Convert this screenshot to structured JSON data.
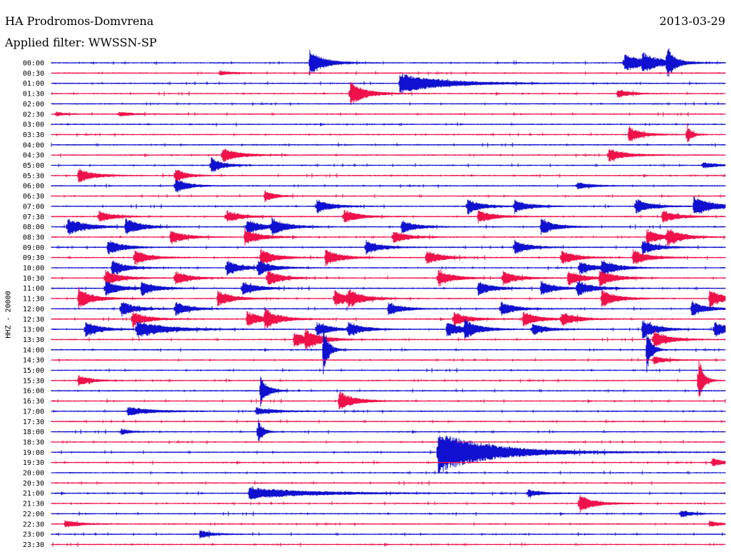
{
  "header": {
    "station": "HA Prodromos-Domvrena",
    "date": "2013-03-29",
    "filter": "Applied filter: WWSSN-SP"
  },
  "channel_label": "HHZ - 20000",
  "colors": {
    "even_rows": "#1010d0",
    "odd_rows": "#f0104a",
    "text": "#000000",
    "background": "#ffffff"
  },
  "chart_data": {
    "type": "line",
    "title": "HA Prodromos-Domvrena",
    "subtitle": "Applied filter: WWSSN-SP",
    "ylabel": "HHZ - 20000",
    "xlabel": "",
    "grid": false,
    "row_labels": [
      "00:00",
      "00:30",
      "01:00",
      "01:30",
      "02:00",
      "02:30",
      "03:00",
      "03:30",
      "04:00",
      "04:30",
      "05:00",
      "05:30",
      "06:00",
      "06:30",
      "07:00",
      "07:30",
      "08:00",
      "08:30",
      "09:00",
      "09:30",
      "10:00",
      "10:30",
      "11:00",
      "11:30",
      "12:00",
      "12:30",
      "13:00",
      "13:30",
      "14:00",
      "14:30",
      "15:00",
      "15:30",
      "16:00",
      "16:30",
      "17:00",
      "17:30",
      "18:00",
      "18:30",
      "19:00",
      "19:30",
      "20:00",
      "20:30",
      "21:00",
      "21:30",
      "22:00",
      "22:30",
      "23:00",
      "23:30"
    ],
    "x_range_minutes": [
      0,
      30
    ],
    "events": [
      {
        "row": 0,
        "t": 11.5,
        "amp": 18,
        "dur": 0.6
      },
      {
        "row": 0,
        "t": 25.5,
        "amp": 12,
        "dur": 1.0
      },
      {
        "row": 0,
        "t": 26.3,
        "amp": 10,
        "dur": 0.6
      },
      {
        "row": 0,
        "t": 27.4,
        "amp": 22,
        "dur": 0.3
      },
      {
        "row": 1,
        "t": 7.5,
        "amp": 3,
        "dur": 0.5
      },
      {
        "row": 2,
        "t": 15.5,
        "amp": 14,
        "dur": 1.8
      },
      {
        "row": 3,
        "t": 13.3,
        "amp": 18,
        "dur": 0.6
      },
      {
        "row": 3,
        "t": 25.2,
        "amp": 6,
        "dur": 0.5
      },
      {
        "row": 5,
        "t": 0.2,
        "amp": 3,
        "dur": 0.4
      },
      {
        "row": 5,
        "t": 3.0,
        "amp": 3,
        "dur": 0.6
      },
      {
        "row": 7,
        "t": 25.7,
        "amp": 12,
        "dur": 0.5
      },
      {
        "row": 7,
        "t": 28.3,
        "amp": 14,
        "dur": 0.2
      },
      {
        "row": 9,
        "t": 7.6,
        "amp": 10,
        "dur": 0.7
      },
      {
        "row": 9,
        "t": 24.8,
        "amp": 9,
        "dur": 0.7
      },
      {
        "row": 10,
        "t": 7.1,
        "amp": 11,
        "dur": 0.5
      },
      {
        "row": 10,
        "t": 29.0,
        "amp": 4,
        "dur": 0.6
      },
      {
        "row": 11,
        "t": 1.2,
        "amp": 10,
        "dur": 0.6
      },
      {
        "row": 11,
        "t": 5.5,
        "amp": 12,
        "dur": 0.4
      },
      {
        "row": 12,
        "t": 5.5,
        "amp": 11,
        "dur": 0.5
      },
      {
        "row": 12,
        "t": 23.4,
        "amp": 5,
        "dur": 0.6
      },
      {
        "row": 13,
        "t": 9.5,
        "amp": 8,
        "dur": 0.4
      },
      {
        "row": 14,
        "t": 11.8,
        "amp": 10,
        "dur": 0.6
      },
      {
        "row": 14,
        "t": 18.5,
        "amp": 10,
        "dur": 0.6
      },
      {
        "row": 14,
        "t": 20.6,
        "amp": 9,
        "dur": 0.6
      },
      {
        "row": 14,
        "t": 26.0,
        "amp": 11,
        "dur": 0.6
      },
      {
        "row": 14,
        "t": 28.6,
        "amp": 14,
        "dur": 0.8
      },
      {
        "row": 15,
        "t": 2.1,
        "amp": 8,
        "dur": 0.6
      },
      {
        "row": 15,
        "t": 7.8,
        "amp": 8,
        "dur": 0.6
      },
      {
        "row": 15,
        "t": 13.0,
        "amp": 10,
        "dur": 0.6
      },
      {
        "row": 15,
        "t": 19.0,
        "amp": 9,
        "dur": 0.6
      },
      {
        "row": 15,
        "t": 27.2,
        "amp": 9,
        "dur": 0.6
      },
      {
        "row": 16,
        "t": 0.7,
        "amp": 12,
        "dur": 0.8
      },
      {
        "row": 16,
        "t": 3.3,
        "amp": 12,
        "dur": 0.6
      },
      {
        "row": 16,
        "t": 8.7,
        "amp": 11,
        "dur": 0.6
      },
      {
        "row": 16,
        "t": 9.8,
        "amp": 12,
        "dur": 0.6
      },
      {
        "row": 16,
        "t": 15.6,
        "amp": 9,
        "dur": 0.6
      },
      {
        "row": 16,
        "t": 21.8,
        "amp": 11,
        "dur": 0.6
      },
      {
        "row": 17,
        "t": 5.3,
        "amp": 10,
        "dur": 0.6
      },
      {
        "row": 17,
        "t": 8.6,
        "amp": 12,
        "dur": 0.6
      },
      {
        "row": 17,
        "t": 15.2,
        "amp": 9,
        "dur": 0.6
      },
      {
        "row": 17,
        "t": 26.5,
        "amp": 10,
        "dur": 0.6
      },
      {
        "row": 17,
        "t": 27.4,
        "amp": 12,
        "dur": 0.6
      },
      {
        "row": 18,
        "t": 2.5,
        "amp": 11,
        "dur": 0.6
      },
      {
        "row": 18,
        "t": 14.0,
        "amp": 10,
        "dur": 0.6
      },
      {
        "row": 18,
        "t": 20.6,
        "amp": 10,
        "dur": 0.6
      },
      {
        "row": 18,
        "t": 26.3,
        "amp": 10,
        "dur": 0.6
      },
      {
        "row": 19,
        "t": 3.7,
        "amp": 10,
        "dur": 0.6
      },
      {
        "row": 19,
        "t": 9.3,
        "amp": 12,
        "dur": 0.6
      },
      {
        "row": 19,
        "t": 12.2,
        "amp": 12,
        "dur": 0.6
      },
      {
        "row": 19,
        "t": 16.7,
        "amp": 10,
        "dur": 0.6
      },
      {
        "row": 19,
        "t": 22.7,
        "amp": 10,
        "dur": 0.6
      },
      {
        "row": 19,
        "t": 25.9,
        "amp": 11,
        "dur": 0.6
      },
      {
        "row": 20,
        "t": 2.7,
        "amp": 10,
        "dur": 0.6
      },
      {
        "row": 20,
        "t": 7.8,
        "amp": 11,
        "dur": 0.6
      },
      {
        "row": 20,
        "t": 9.2,
        "amp": 10,
        "dur": 0.6
      },
      {
        "row": 20,
        "t": 23.5,
        "amp": 9,
        "dur": 0.6
      },
      {
        "row": 20,
        "t": 24.5,
        "amp": 11,
        "dur": 0.6
      },
      {
        "row": 21,
        "t": 2.4,
        "amp": 11,
        "dur": 0.6
      },
      {
        "row": 21,
        "t": 5.5,
        "amp": 10,
        "dur": 0.6
      },
      {
        "row": 21,
        "t": 9.6,
        "amp": 11,
        "dur": 0.6
      },
      {
        "row": 21,
        "t": 17.2,
        "amp": 12,
        "dur": 0.6
      },
      {
        "row": 21,
        "t": 20.1,
        "amp": 10,
        "dur": 0.6
      },
      {
        "row": 21,
        "t": 23.0,
        "amp": 11,
        "dur": 0.6
      },
      {
        "row": 21,
        "t": 24.4,
        "amp": 12,
        "dur": 0.6
      },
      {
        "row": 22,
        "t": 2.4,
        "amp": 11,
        "dur": 0.6
      },
      {
        "row": 22,
        "t": 4.0,
        "amp": 10,
        "dur": 0.6
      },
      {
        "row": 22,
        "t": 8.5,
        "amp": 10,
        "dur": 0.6
      },
      {
        "row": 22,
        "t": 19.0,
        "amp": 10,
        "dur": 0.6
      },
      {
        "row": 22,
        "t": 21.8,
        "amp": 10,
        "dur": 0.6
      },
      {
        "row": 22,
        "t": 23.4,
        "amp": 11,
        "dur": 0.6
      },
      {
        "row": 23,
        "t": 1.2,
        "amp": 14,
        "dur": 0.6
      },
      {
        "row": 23,
        "t": 7.4,
        "amp": 11,
        "dur": 0.6
      },
      {
        "row": 23,
        "t": 12.6,
        "amp": 12,
        "dur": 0.6
      },
      {
        "row": 23,
        "t": 13.2,
        "amp": 10,
        "dur": 0.6
      },
      {
        "row": 23,
        "t": 24.5,
        "amp": 12,
        "dur": 0.6
      },
      {
        "row": 23,
        "t": 29.3,
        "amp": 12,
        "dur": 0.6
      },
      {
        "row": 24,
        "t": 3.1,
        "amp": 11,
        "dur": 0.6
      },
      {
        "row": 24,
        "t": 5.5,
        "amp": 10,
        "dur": 0.6
      },
      {
        "row": 24,
        "t": 15.0,
        "amp": 9,
        "dur": 0.6
      },
      {
        "row": 24,
        "t": 20.0,
        "amp": 10,
        "dur": 0.6
      },
      {
        "row": 24,
        "t": 28.5,
        "amp": 10,
        "dur": 0.6
      },
      {
        "row": 25,
        "t": 3.6,
        "amp": 11,
        "dur": 0.6
      },
      {
        "row": 25,
        "t": 8.7,
        "amp": 11,
        "dur": 0.6
      },
      {
        "row": 25,
        "t": 9.5,
        "amp": 12,
        "dur": 0.6
      },
      {
        "row": 25,
        "t": 17.9,
        "amp": 10,
        "dur": 0.6
      },
      {
        "row": 25,
        "t": 21.0,
        "amp": 11,
        "dur": 0.6
      },
      {
        "row": 25,
        "t": 22.7,
        "amp": 10,
        "dur": 0.6
      },
      {
        "row": 26,
        "t": 1.5,
        "amp": 11,
        "dur": 0.6
      },
      {
        "row": 26,
        "t": 3.8,
        "amp": 12,
        "dur": 1.2
      },
      {
        "row": 26,
        "t": 11.8,
        "amp": 10,
        "dur": 0.6
      },
      {
        "row": 26,
        "t": 13.2,
        "amp": 10,
        "dur": 0.6
      },
      {
        "row": 26,
        "t": 17.6,
        "amp": 11,
        "dur": 0.6
      },
      {
        "row": 26,
        "t": 18.4,
        "amp": 11,
        "dur": 0.6
      },
      {
        "row": 26,
        "t": 21.4,
        "amp": 8,
        "dur": 0.6
      },
      {
        "row": 26,
        "t": 26.3,
        "amp": 14,
        "dur": 0.6
      },
      {
        "row": 26,
        "t": 29.5,
        "amp": 11,
        "dur": 0.6
      },
      {
        "row": 27,
        "t": 10.8,
        "amp": 11,
        "dur": 0.6
      },
      {
        "row": 27,
        "t": 11.3,
        "amp": 12,
        "dur": 0.6
      },
      {
        "row": 27,
        "t": 26.8,
        "amp": 13,
        "dur": 0.6
      },
      {
        "row": 28,
        "t": 12.1,
        "amp": 40,
        "dur": 0.2
      },
      {
        "row": 28,
        "t": 26.5,
        "amp": 32,
        "dur": 0.2
      },
      {
        "row": 29,
        "t": 26.8,
        "amp": 6,
        "dur": 0.5
      },
      {
        "row": 31,
        "t": 1.2,
        "amp": 7,
        "dur": 0.5
      },
      {
        "row": 31,
        "t": 28.8,
        "amp": 38,
        "dur": 0.2
      },
      {
        "row": 32,
        "t": 9.3,
        "amp": 22,
        "dur": 0.3
      },
      {
        "row": 33,
        "t": 12.8,
        "amp": 14,
        "dur": 0.6
      },
      {
        "row": 34,
        "t": 3.4,
        "amp": 6,
        "dur": 1.0
      },
      {
        "row": 34,
        "t": 9.1,
        "amp": 5,
        "dur": 0.8
      },
      {
        "row": 36,
        "t": 3.1,
        "amp": 4,
        "dur": 0.4
      },
      {
        "row": 36,
        "t": 9.2,
        "amp": 18,
        "dur": 0.2
      },
      {
        "row": 38,
        "t": 17.2,
        "amp": 30,
        "dur": 2.2
      },
      {
        "row": 39,
        "t": 29.4,
        "amp": 6,
        "dur": 0.5
      },
      {
        "row": 42,
        "t": 8.8,
        "amp": 8,
        "dur": 2.5
      },
      {
        "row": 42,
        "t": 21.2,
        "amp": 5,
        "dur": 0.6
      },
      {
        "row": 43,
        "t": 23.5,
        "amp": 12,
        "dur": 0.6
      },
      {
        "row": 44,
        "t": 28.0,
        "amp": 6,
        "dur": 0.4
      },
      {
        "row": 45,
        "t": 0.6,
        "amp": 5,
        "dur": 0.6
      },
      {
        "row": 45,
        "t": 29.3,
        "amp": 4,
        "dur": 0.4
      },
      {
        "row": 46,
        "t": 6.6,
        "amp": 6,
        "dur": 0.5
      }
    ]
  }
}
